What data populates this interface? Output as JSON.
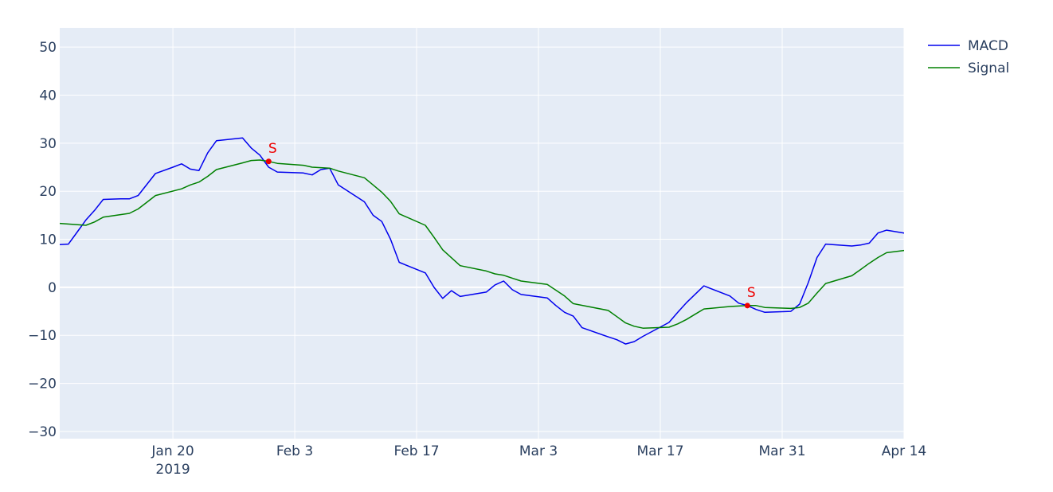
{
  "chart_data": {
    "type": "line",
    "title": "",
    "xlabel": "",
    "ylabel": "",
    "x_range": [
      "2019-01-07",
      "2019-04-14"
    ],
    "ylim": [
      -31.5,
      54
    ],
    "y_ticks": [
      50,
      40,
      30,
      20,
      10,
      0,
      -10,
      -20,
      -30
    ],
    "y_tick_labels": [
      "50",
      "40",
      "30",
      "20",
      "10",
      "0",
      "−10",
      "−20",
      "−30"
    ],
    "x_ticks": [
      {
        "date": "2019-01-20",
        "label": "Jan 20",
        "sublabel": "2019"
      },
      {
        "date": "2019-02-03",
        "label": "Feb 3",
        "sublabel": ""
      },
      {
        "date": "2019-02-17",
        "label": "Feb 17",
        "sublabel": ""
      },
      {
        "date": "2019-03-03",
        "label": "Mar 3",
        "sublabel": ""
      },
      {
        "date": "2019-03-17",
        "label": "Mar 17",
        "sublabel": ""
      },
      {
        "date": "2019-03-31",
        "label": "Mar 31",
        "sublabel": ""
      },
      {
        "date": "2019-04-14",
        "label": "Apr 14",
        "sublabel": ""
      }
    ],
    "grid": true,
    "legend_position": "top-right",
    "colors": {
      "plot_bg": "#e5ecf6",
      "grid": "#ffffff",
      "macd": "#0000ee",
      "signal": "#008000",
      "marker": "#ee0000",
      "text": "#2a3f5f"
    },
    "series": [
      {
        "name": "MACD",
        "color": "#0000ee",
        "points": [
          [
            "2019-01-07",
            8.9
          ],
          [
            "2019-01-08",
            9.0
          ],
          [
            "2019-01-09",
            11.5
          ],
          [
            "2019-01-10",
            14.0
          ],
          [
            "2019-01-11",
            16.0
          ],
          [
            "2019-01-12",
            18.3
          ],
          [
            "2019-01-14",
            18.4
          ],
          [
            "2019-01-15",
            18.4
          ],
          [
            "2019-01-16",
            19.1
          ],
          [
            "2019-01-18",
            23.7
          ],
          [
            "2019-01-20",
            25.0
          ],
          [
            "2019-01-21",
            25.7
          ],
          [
            "2019-01-22",
            24.6
          ],
          [
            "2019-01-23",
            24.3
          ],
          [
            "2019-01-24",
            28.0
          ],
          [
            "2019-01-25",
            30.5
          ],
          [
            "2019-01-28",
            31.1
          ],
          [
            "2019-01-29",
            29.0
          ],
          [
            "2019-01-30",
            27.5
          ],
          [
            "2019-01-31",
            25.0
          ],
          [
            "2019-02-01",
            24.0
          ],
          [
            "2019-02-04",
            23.8
          ],
          [
            "2019-02-05",
            23.4
          ],
          [
            "2019-02-06",
            24.5
          ],
          [
            "2019-02-07",
            24.8
          ],
          [
            "2019-02-08",
            21.3
          ],
          [
            "2019-02-11",
            17.8
          ],
          [
            "2019-02-12",
            15.0
          ],
          [
            "2019-02-13",
            13.7
          ],
          [
            "2019-02-14",
            10.0
          ],
          [
            "2019-02-15",
            5.2
          ],
          [
            "2019-02-18",
            3.0
          ],
          [
            "2019-02-19",
            0.0
          ],
          [
            "2019-02-20",
            -2.3
          ],
          [
            "2019-02-21",
            -0.7
          ],
          [
            "2019-02-22",
            -1.9
          ],
          [
            "2019-02-25",
            -1.0
          ],
          [
            "2019-02-26",
            0.5
          ],
          [
            "2019-02-27",
            1.3
          ],
          [
            "2019-02-28",
            -0.5
          ],
          [
            "2019-03-01",
            -1.5
          ],
          [
            "2019-03-04",
            -2.2
          ],
          [
            "2019-03-05",
            -3.8
          ],
          [
            "2019-03-06",
            -5.2
          ],
          [
            "2019-03-07",
            -6.0
          ],
          [
            "2019-03-08",
            -8.4
          ],
          [
            "2019-03-11",
            -10.3
          ],
          [
            "2019-03-12",
            -10.9
          ],
          [
            "2019-03-13",
            -11.8
          ],
          [
            "2019-03-14",
            -11.3
          ],
          [
            "2019-03-15",
            -10.2
          ],
          [
            "2019-03-18",
            -7.3
          ],
          [
            "2019-03-19",
            -5.2
          ],
          [
            "2019-03-20",
            -3.2
          ],
          [
            "2019-03-22",
            0.3
          ],
          [
            "2019-03-25",
            -1.8
          ],
          [
            "2019-03-26",
            -3.3
          ],
          [
            "2019-03-27",
            -3.8
          ],
          [
            "2019-03-28",
            -4.6
          ],
          [
            "2019-03-29",
            -5.2
          ],
          [
            "2019-04-01",
            -5.0
          ],
          [
            "2019-04-02",
            -3.5
          ],
          [
            "2019-04-03",
            1.0
          ],
          [
            "2019-04-04",
            6.2
          ],
          [
            "2019-04-05",
            9.0
          ],
          [
            "2019-04-08",
            8.6
          ],
          [
            "2019-04-09",
            8.8
          ],
          [
            "2019-04-10",
            9.2
          ],
          [
            "2019-04-11",
            11.3
          ],
          [
            "2019-04-12",
            11.9
          ],
          [
            "2019-04-15",
            11.0
          ]
        ]
      },
      {
        "name": "Signal",
        "color": "#008000",
        "points": [
          [
            "2019-01-07",
            13.3
          ],
          [
            "2019-01-10",
            12.9
          ],
          [
            "2019-01-11",
            13.6
          ],
          [
            "2019-01-12",
            14.6
          ],
          [
            "2019-01-15",
            15.4
          ],
          [
            "2019-01-16",
            16.3
          ],
          [
            "2019-01-17",
            17.7
          ],
          [
            "2019-01-18",
            19.1
          ],
          [
            "2019-01-21",
            20.5
          ],
          [
            "2019-01-22",
            21.3
          ],
          [
            "2019-01-23",
            21.9
          ],
          [
            "2019-01-24",
            23.1
          ],
          [
            "2019-01-25",
            24.5
          ],
          [
            "2019-01-28",
            25.9
          ],
          [
            "2019-01-29",
            26.4
          ],
          [
            "2019-01-30",
            26.5
          ],
          [
            "2019-01-31",
            26.2
          ],
          [
            "2019-02-01",
            25.8
          ],
          [
            "2019-02-04",
            25.4
          ],
          [
            "2019-02-05",
            25.0
          ],
          [
            "2019-02-07",
            24.8
          ],
          [
            "2019-02-08",
            24.2
          ],
          [
            "2019-02-11",
            22.8
          ],
          [
            "2019-02-12",
            21.3
          ],
          [
            "2019-02-13",
            19.8
          ],
          [
            "2019-02-14",
            17.9
          ],
          [
            "2019-02-15",
            15.3
          ],
          [
            "2019-02-18",
            12.9
          ],
          [
            "2019-02-19",
            10.4
          ],
          [
            "2019-02-20",
            7.8
          ],
          [
            "2019-02-22",
            4.5
          ],
          [
            "2019-02-25",
            3.4
          ],
          [
            "2019-02-26",
            2.8
          ],
          [
            "2019-02-27",
            2.5
          ],
          [
            "2019-02-28",
            1.9
          ],
          [
            "2019-03-01",
            1.3
          ],
          [
            "2019-03-04",
            0.6
          ],
          [
            "2019-03-05",
            -0.6
          ],
          [
            "2019-03-06",
            -1.8
          ],
          [
            "2019-03-07",
            -3.4
          ],
          [
            "2019-03-11",
            -4.8
          ],
          [
            "2019-03-12",
            -6.1
          ],
          [
            "2019-03-13",
            -7.4
          ],
          [
            "2019-03-14",
            -8.1
          ],
          [
            "2019-03-15",
            -8.5
          ],
          [
            "2019-03-18",
            -8.3
          ],
          [
            "2019-03-19",
            -7.6
          ],
          [
            "2019-03-20",
            -6.7
          ],
          [
            "2019-03-21",
            -5.6
          ],
          [
            "2019-03-22",
            -4.5
          ],
          [
            "2019-03-25",
            -4.0
          ],
          [
            "2019-03-26",
            -3.9
          ],
          [
            "2019-03-27",
            -3.8
          ],
          [
            "2019-03-28",
            -3.8
          ],
          [
            "2019-03-29",
            -4.2
          ],
          [
            "2019-04-01",
            -4.4
          ],
          [
            "2019-04-02",
            -4.2
          ],
          [
            "2019-04-03",
            -3.3
          ],
          [
            "2019-04-04",
            -1.2
          ],
          [
            "2019-04-05",
            0.8
          ],
          [
            "2019-04-08",
            2.4
          ],
          [
            "2019-04-09",
            3.7
          ],
          [
            "2019-04-10",
            5.0
          ],
          [
            "2019-04-11",
            6.2
          ],
          [
            "2019-04-12",
            7.2
          ],
          [
            "2019-04-15",
            7.9
          ]
        ]
      }
    ],
    "annotations": [
      {
        "date": "2019-01-31",
        "value": 26.2,
        "text": "S"
      },
      {
        "date": "2019-03-27",
        "value": -3.8,
        "text": "S"
      }
    ]
  }
}
